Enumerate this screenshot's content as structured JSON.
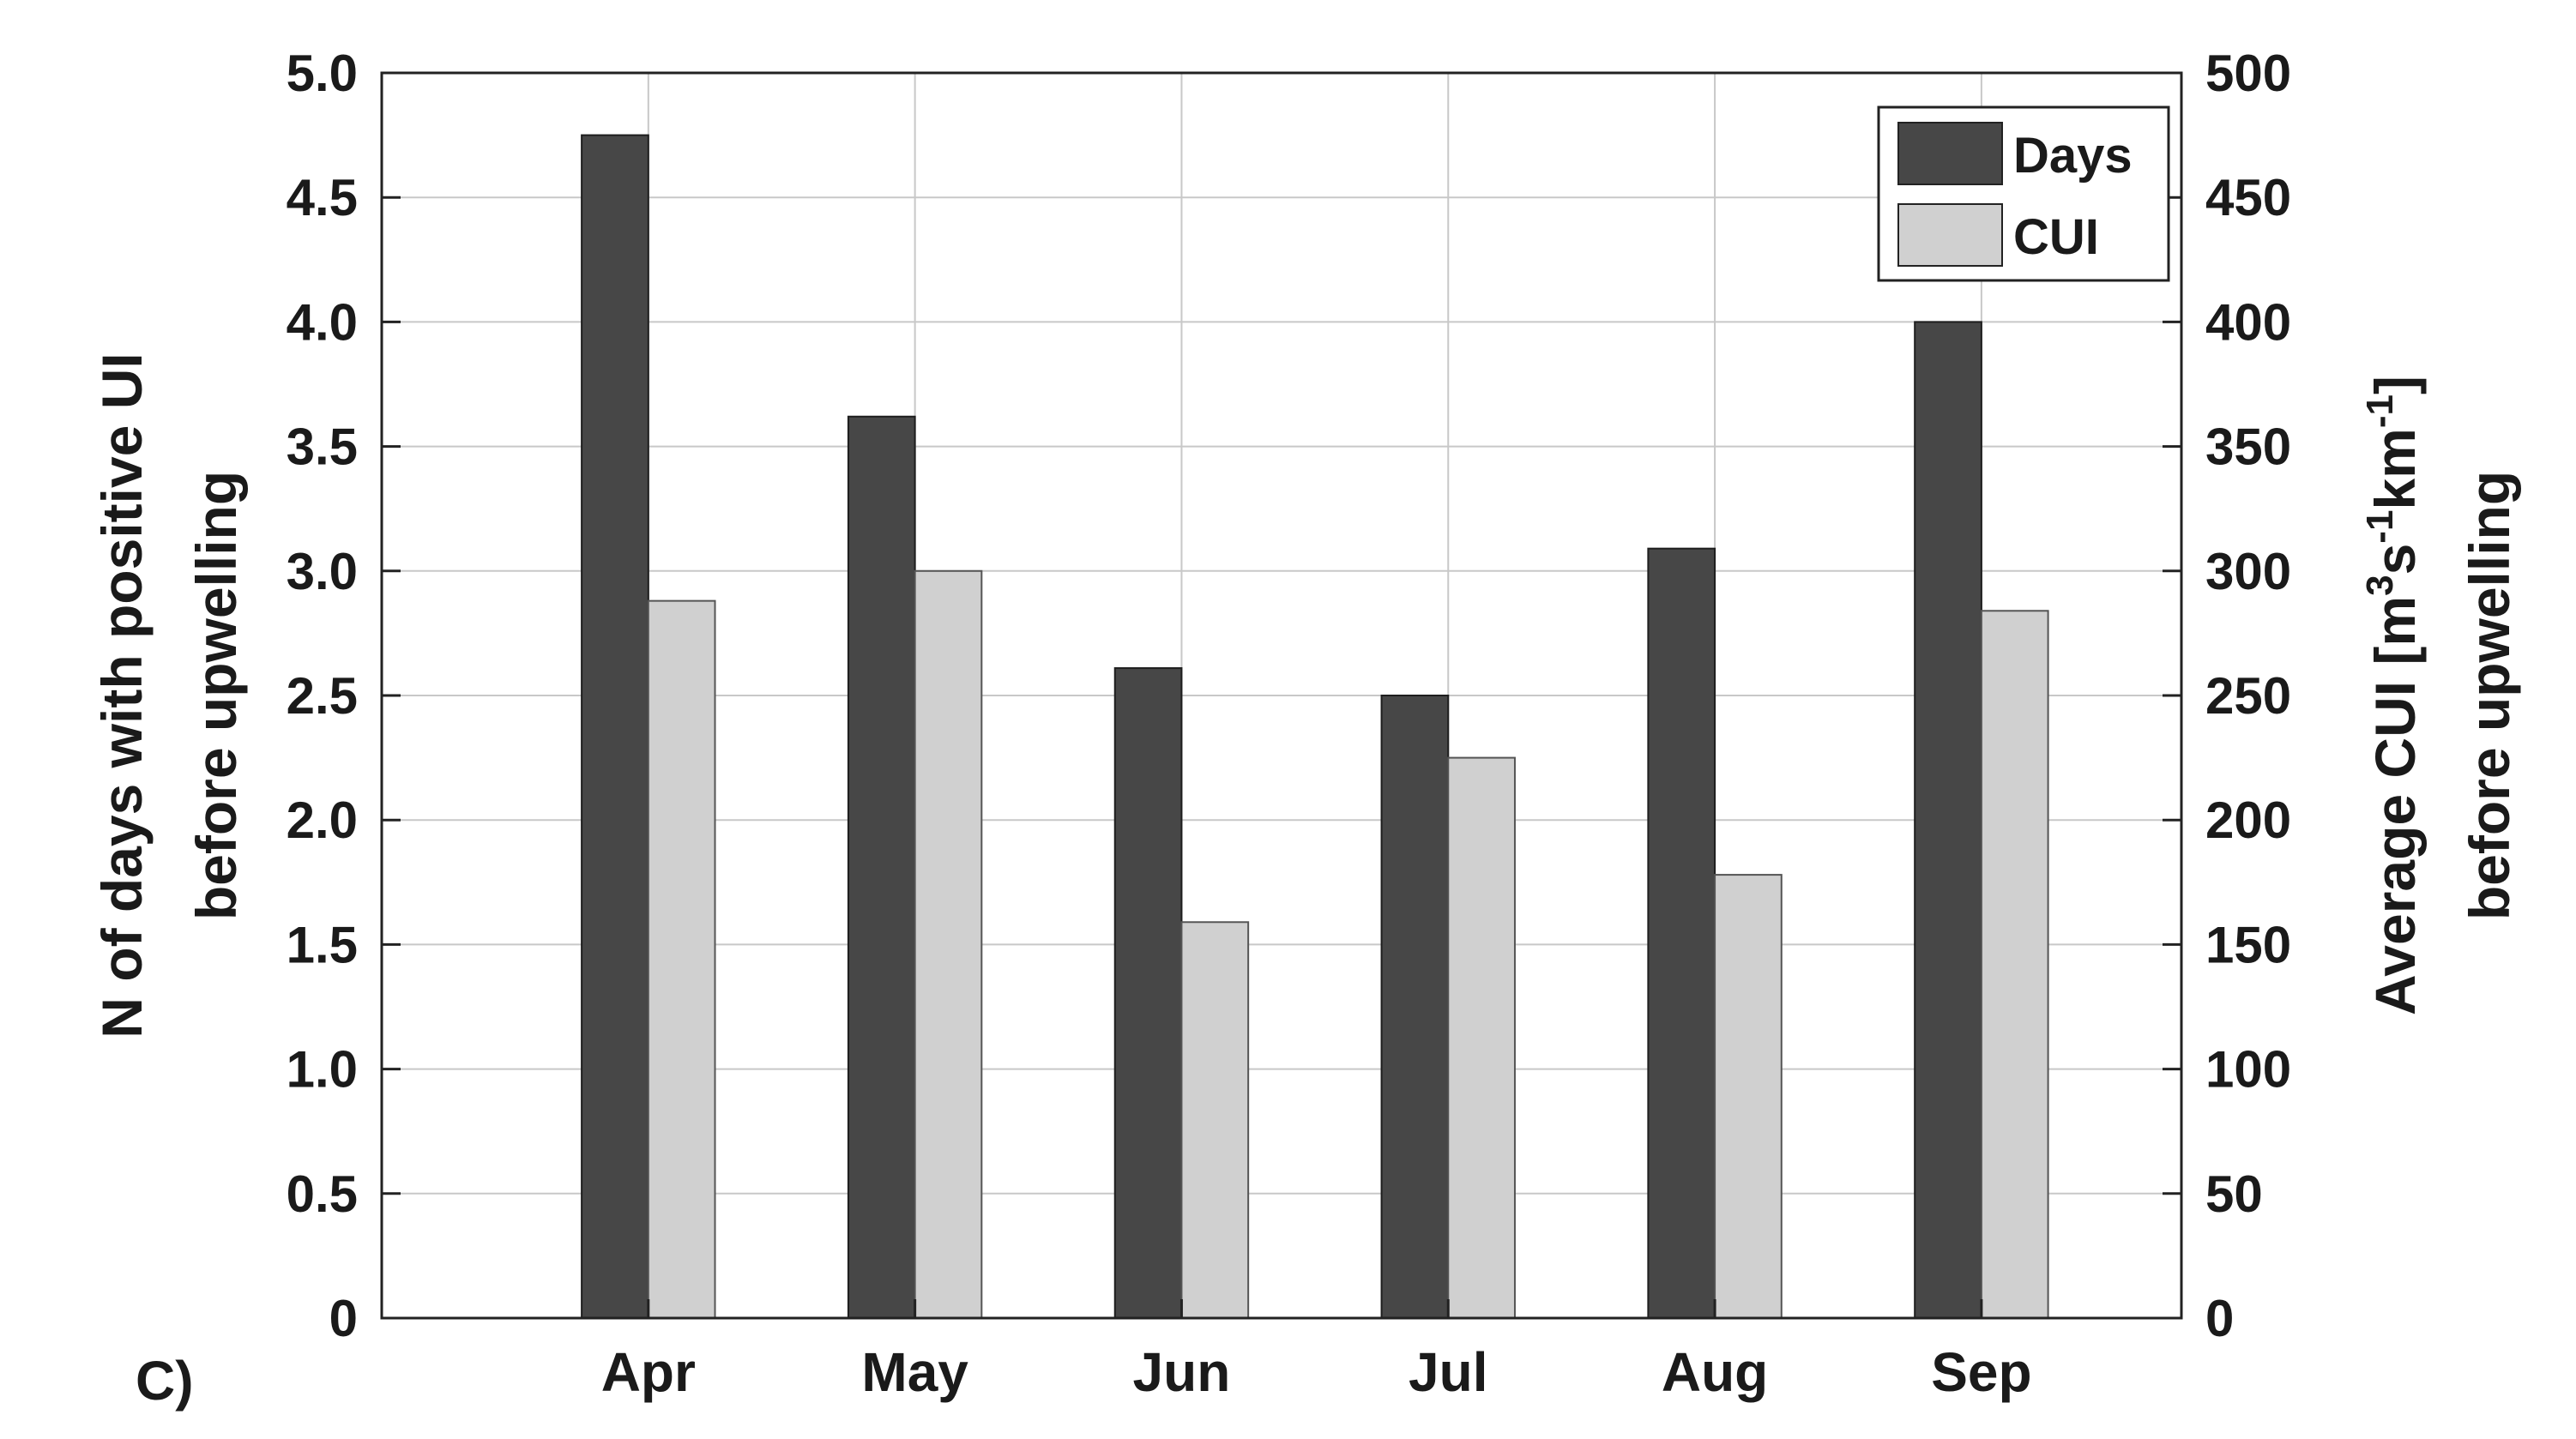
{
  "chart_data": {
    "type": "bar",
    "panel_label": "C)",
    "categories": [
      "Apr",
      "May",
      "Jun",
      "Jul",
      "Aug",
      "Sep"
    ],
    "series": [
      {
        "name": "Days",
        "axis": "left",
        "color": "#474747",
        "values": [
          4.75,
          3.62,
          2.61,
          2.5,
          3.09,
          4.0
        ]
      },
      {
        "name": "CUI",
        "axis": "right",
        "color": "#d0d0d0",
        "values": [
          288,
          300,
          159,
          225,
          178,
          284
        ]
      }
    ],
    "ylabel_left": [
      "N of days with positive UI",
      "before upwelling"
    ],
    "ylabel_right": {
      "line1_prefix": "Average CUI [m",
      "line1_sup1": "3",
      "line1_mid1": "s",
      "line1_sup2": "-1",
      "line1_mid2": "km",
      "line1_sup3": "-1",
      "line1_suffix": "]",
      "line2": "before upwelling"
    },
    "ylim_left": [
      0,
      5
    ],
    "ylim_right": [
      0,
      500
    ],
    "yticks_left": [
      "0",
      "0.5",
      "1.0",
      "1.5",
      "2.0",
      "2.5",
      "3.0",
      "3.5",
      "4.0",
      "4.5",
      "5.0"
    ],
    "yticks_right": [
      "0",
      "50",
      "100",
      "150",
      "200",
      "250",
      "300",
      "350",
      "400",
      "450",
      "500"
    ],
    "grid": true,
    "legend_position": "top-right"
  }
}
